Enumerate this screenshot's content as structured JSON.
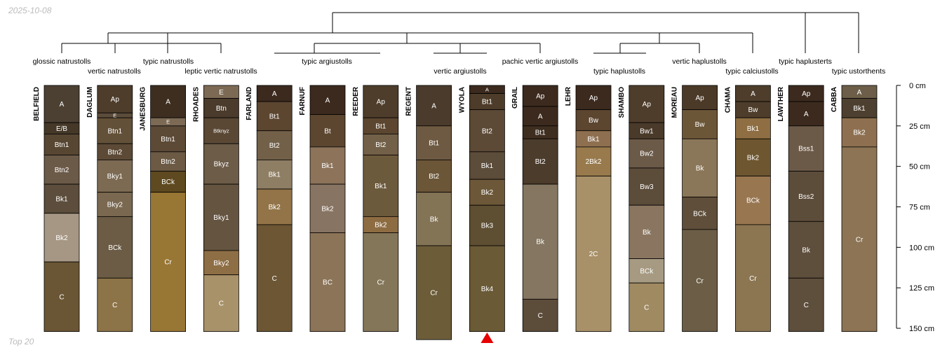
{
  "date_label": "2025-10-08",
  "footer_label": "Top 20",
  "colors": {
    "line": "#000000",
    "label_dark": "#ffffff",
    "label_light": "#ffffff",
    "marker": "#e60000"
  },
  "chart_data": {
    "type": "soil-profile-sketch",
    "depth_unit": "cm",
    "depth_range": [
      0,
      150
    ],
    "depth_ticks": [
      {
        "value": 0,
        "label": "0 cm"
      },
      {
        "value": 25,
        "label": "25 cm"
      },
      {
        "value": 50,
        "label": "50 cm"
      },
      {
        "value": 75,
        "label": "75 cm"
      },
      {
        "value": 100,
        "label": "100 cm"
      },
      {
        "value": 125,
        "label": "125 cm"
      },
      {
        "value": 150,
        "label": "150 cm"
      }
    ],
    "taxonomy_labels": [
      "glossic natrustolls",
      "vertic natrustolls",
      "typic natrustolls",
      "leptic vertic natrustolls",
      "typic argiustolls",
      "vertic argiustolls",
      "pachic vertic argiustolls",
      "typic haplustolls",
      "vertic haplustolls",
      "typic calciustolls",
      "typic haplusterts",
      "typic ustorthents"
    ],
    "profiles": [
      {
        "name": "BELFIELD",
        "taxon": "glossic natrustolls",
        "horizons": [
          {
            "name": "A",
            "top": 0,
            "bottom": 23,
            "color": "#4c4033"
          },
          {
            "name": "E/B",
            "top": 23,
            "bottom": 30,
            "color": "#453828"
          },
          {
            "name": "Btn1",
            "top": 30,
            "bottom": 43,
            "color": "#574632"
          },
          {
            "name": "Btn2",
            "top": 43,
            "bottom": 61,
            "color": "#6c5a48"
          },
          {
            "name": "Bk1",
            "top": 61,
            "bottom": 79,
            "color": "#5c4d3c"
          },
          {
            "name": "Bk2",
            "top": 79,
            "bottom": 109,
            "color": "#a69784"
          },
          {
            "name": "C",
            "top": 109,
            "bottom": 152,
            "color": "#6a5635"
          }
        ]
      },
      {
        "name": "DAGLUM",
        "taxon": "vertic natrustolls",
        "horizons": [
          {
            "name": "Ap",
            "top": 0,
            "bottom": 17,
            "color": "#4e3d2b"
          },
          {
            "name": "E",
            "top": 17,
            "bottom": 20,
            "color": "#5c4c3b"
          },
          {
            "name": "Btn1",
            "top": 20,
            "bottom": 36,
            "color": "#625038"
          },
          {
            "name": "Btn2",
            "top": 36,
            "bottom": 46,
            "color": "#5c4a36"
          },
          {
            "name": "Bky1",
            "top": 46,
            "bottom": 66,
            "color": "#7c6a52"
          },
          {
            "name": "Bky2",
            "top": 66,
            "bottom": 81,
            "color": "#7a6850"
          },
          {
            "name": "BCk",
            "top": 81,
            "bottom": 119,
            "color": "#6c5c45"
          },
          {
            "name": "C",
            "top": 119,
            "bottom": 152,
            "color": "#8c7448"
          }
        ]
      },
      {
        "name": "JANESBURG",
        "taxon": "typic natrustolls",
        "horizons": [
          {
            "name": "A",
            "top": 0,
            "bottom": 20,
            "color": "#3e2e20"
          },
          {
            "name": "E",
            "top": 20,
            "bottom": 25,
            "color": "#7c6a55"
          },
          {
            "name": "Btn1",
            "top": 25,
            "bottom": 41,
            "color": "#5c4a36"
          },
          {
            "name": "Btn2",
            "top": 41,
            "bottom": 53,
            "color": "#6c5a45"
          },
          {
            "name": "BCk",
            "top": 53,
            "bottom": 66,
            "color": "#5e4920"
          },
          {
            "name": "Cr",
            "top": 66,
            "bottom": 152,
            "color": "#987634"
          }
        ]
      },
      {
        "name": "RHOADES",
        "taxon": "leptic vertic natrustolls",
        "horizons": [
          {
            "name": "E",
            "top": 0,
            "bottom": 8,
            "color": "#7c6a55"
          },
          {
            "name": "Btn",
            "top": 8,
            "bottom": 20,
            "color": "#4a3b2c"
          },
          {
            "name": "Btknyz",
            "top": 20,
            "bottom": 36,
            "color": "#5a4835"
          },
          {
            "name": "Bkyz",
            "top": 36,
            "bottom": 61,
            "color": "#6c5c48"
          },
          {
            "name": "Bky1",
            "top": 61,
            "bottom": 102,
            "color": "#645440"
          },
          {
            "name": "Bky2",
            "top": 102,
            "bottom": 117,
            "color": "#8e6e45"
          },
          {
            "name": "C",
            "top": 117,
            "bottom": 152,
            "color": "#a8926a"
          }
        ]
      },
      {
        "name": "FARLAND",
        "taxon": "typic argiustolls",
        "horizons": [
          {
            "name": "A",
            "top": 0,
            "bottom": 10,
            "color": "#3c2a1e"
          },
          {
            "name": "Bt1",
            "top": 10,
            "bottom": 28,
            "color": "#5c4630"
          },
          {
            "name": "Bt2",
            "top": 28,
            "bottom": 46,
            "color": "#726048"
          },
          {
            "name": "Bk1",
            "top": 46,
            "bottom": 64,
            "color": "#8e7e64"
          },
          {
            "name": "Bk2",
            "top": 64,
            "bottom": 86,
            "color": "#927448"
          },
          {
            "name": "C",
            "top": 86,
            "bottom": 152,
            "color": "#6c5634"
          }
        ]
      },
      {
        "name": "FARNUF",
        "taxon": "typic argiustolls",
        "horizons": [
          {
            "name": "A",
            "top": 0,
            "bottom": 18,
            "color": "#3c2a1e"
          },
          {
            "name": "Bt",
            "top": 18,
            "bottom": 38,
            "color": "#5c4630"
          },
          {
            "name": "Bk1",
            "top": 38,
            "bottom": 61,
            "color": "#8c735a"
          },
          {
            "name": "Bk2",
            "top": 61,
            "bottom": 91,
            "color": "#887462"
          },
          {
            "name": "BC",
            "top": 91,
            "bottom": 152,
            "color": "#8c7458"
          }
        ]
      },
      {
        "name": "REEDER",
        "taxon": "typic argiustolls",
        "horizons": [
          {
            "name": "Ap",
            "top": 0,
            "bottom": 20,
            "color": "#4e3d2b"
          },
          {
            "name": "Bt1",
            "top": 20,
            "bottom": 30,
            "color": "#5c4630"
          },
          {
            "name": "Bt2",
            "top": 30,
            "bottom": 43,
            "color": "#726048"
          },
          {
            "name": "Bk1",
            "top": 43,
            "bottom": 81,
            "color": "#6c5a3c"
          },
          {
            "name": "Bk2",
            "top": 81,
            "bottom": 91,
            "color": "#8e6c42"
          },
          {
            "name": "Cr",
            "top": 91,
            "bottom": 152,
            "color": "#847658"
          }
        ]
      },
      {
        "name": "REGENT",
        "taxon": "vertic argiustolls",
        "horizons": [
          {
            "name": "A",
            "top": 0,
            "bottom": 25,
            "color": "#4a3b2c"
          },
          {
            "name": "Bt1",
            "top": 25,
            "bottom": 46,
            "color": "#6e5a42"
          },
          {
            "name": "Bt2",
            "top": 46,
            "bottom": 66,
            "color": "#6c5638"
          },
          {
            "name": "Bk",
            "top": 66,
            "bottom": 99,
            "color": "#847456"
          },
          {
            "name": "Cr",
            "top": 99,
            "bottom": 157,
            "color": "#6c5c38"
          }
        ]
      },
      {
        "name": "WYOLA",
        "taxon": "vertic argiustolls",
        "horizons": [
          {
            "name": "A",
            "top": 0,
            "bottom": 5,
            "color": "#3c2a1e"
          },
          {
            "name": "Bt1",
            "top": 5,
            "bottom": 15,
            "color": "#4e3c2a"
          },
          {
            "name": "Bt2",
            "top": 15,
            "bottom": 41,
            "color": "#5c4a36"
          },
          {
            "name": "Bk1",
            "top": 41,
            "bottom": 58,
            "color": "#5c4c3a"
          },
          {
            "name": "Bk2",
            "top": 58,
            "bottom": 74,
            "color": "#6c5838"
          },
          {
            "name": "Bk3",
            "top": 74,
            "bottom": 99,
            "color": "#5e4e32"
          },
          {
            "name": "Bk4",
            "top": 99,
            "bottom": 152,
            "color": "#6a5a36"
          }
        ]
      },
      {
        "name": "GRAIL",
        "taxon": "pachic vertic argiustolls",
        "horizons": [
          {
            "name": "Ap",
            "top": 0,
            "bottom": 13,
            "color": "#3c2a1e"
          },
          {
            "name": "A",
            "top": 13,
            "bottom": 25,
            "color": "#3c2a1e"
          },
          {
            "name": "Bt1",
            "top": 25,
            "bottom": 33,
            "color": "#3e2e20"
          },
          {
            "name": "Bt2",
            "top": 33,
            "bottom": 61,
            "color": "#4c3c2c"
          },
          {
            "name": "Bk",
            "top": 61,
            "bottom": 132,
            "color": "#847660"
          },
          {
            "name": "C",
            "top": 132,
            "bottom": 152,
            "color": "#5c4c3a"
          }
        ]
      },
      {
        "name": "LEHR",
        "taxon": "typic haplustolls",
        "horizons": [
          {
            "name": "Ap",
            "top": 0,
            "bottom": 15,
            "color": "#3c2a1e"
          },
          {
            "name": "Bw",
            "top": 15,
            "bottom": 28,
            "color": "#5c4630"
          },
          {
            "name": "Bk1",
            "top": 28,
            "bottom": 38,
            "color": "#8e7050"
          },
          {
            "name": "2Bk2",
            "top": 38,
            "bottom": 56,
            "color": "#987a4c"
          },
          {
            "name": "2C",
            "top": 56,
            "bottom": 152,
            "color": "#a89068"
          }
        ]
      },
      {
        "name": "SHAMBO",
        "taxon": "typic haplustolls",
        "horizons": [
          {
            "name": "Ap",
            "top": 0,
            "bottom": 23,
            "color": "#4e3d2b"
          },
          {
            "name": "Bw1",
            "top": 23,
            "bottom": 33,
            "color": "#4a3a2a"
          },
          {
            "name": "Bw2",
            "top": 33,
            "bottom": 51,
            "color": "#6c5a48"
          },
          {
            "name": "Bw3",
            "top": 51,
            "bottom": 74,
            "color": "#5c4c3a"
          },
          {
            "name": "Bk",
            "top": 74,
            "bottom": 107,
            "color": "#8a7660"
          },
          {
            "name": "BCk",
            "top": 107,
            "bottom": 122,
            "color": "#a69a82"
          },
          {
            "name": "C",
            "top": 122,
            "bottom": 152,
            "color": "#a08a62"
          }
        ]
      },
      {
        "name": "MOREAU",
        "taxon": "vertic haplustolls",
        "horizons": [
          {
            "name": "Ap",
            "top": 0,
            "bottom": 15,
            "color": "#4c3a28"
          },
          {
            "name": "Bw",
            "top": 15,
            "bottom": 33,
            "color": "#6c5638"
          },
          {
            "name": "Bk",
            "top": 33,
            "bottom": 69,
            "color": "#8a7658"
          },
          {
            "name": "BCk",
            "top": 69,
            "bottom": 89,
            "color": "#5e4e3a"
          },
          {
            "name": "Cr",
            "top": 89,
            "bottom": 152,
            "color": "#6c5e46"
          }
        ]
      },
      {
        "name": "CHAMA",
        "taxon": "typic calciustolls",
        "horizons": [
          {
            "name": "A",
            "top": 0,
            "bottom": 10,
            "color": "#4e3d2b"
          },
          {
            "name": "Bw",
            "top": 10,
            "bottom": 20,
            "color": "#4e3d2b"
          },
          {
            "name": "Bk1",
            "top": 20,
            "bottom": 33,
            "color": "#8e6e42"
          },
          {
            "name": "Bk2",
            "top": 33,
            "bottom": 56,
            "color": "#6e5630"
          },
          {
            "name": "BCk",
            "top": 56,
            "bottom": 86,
            "color": "#987650"
          },
          {
            "name": "Cr",
            "top": 86,
            "bottom": 152,
            "color": "#8c7652"
          }
        ]
      },
      {
        "name": "LAWTHER",
        "taxon": "typic haplusterts",
        "horizons": [
          {
            "name": "Ap",
            "top": 0,
            "bottom": 10,
            "color": "#3c2a1e"
          },
          {
            "name": "A",
            "top": 10,
            "bottom": 25,
            "color": "#3c2a1e"
          },
          {
            "name": "Bss1",
            "top": 25,
            "bottom": 53,
            "color": "#6c5a48"
          },
          {
            "name": "Bss2",
            "top": 53,
            "bottom": 84,
            "color": "#5c4c3a"
          },
          {
            "name": "Bk",
            "top": 84,
            "bottom": 119,
            "color": "#5e4e3c"
          },
          {
            "name": "C",
            "top": 119,
            "bottom": 152,
            "color": "#5e4e3c"
          }
        ]
      },
      {
        "name": "CABBA",
        "taxon": "typic ustorthents",
        "horizons": [
          {
            "name": "A",
            "top": 0,
            "bottom": 8,
            "color": "#6c5e48"
          },
          {
            "name": "Bk1",
            "top": 8,
            "bottom": 20,
            "color": "#4e4030"
          },
          {
            "name": "Bk2",
            "top": 20,
            "bottom": 38,
            "color": "#8e7050"
          },
          {
            "name": "Cr",
            "top": 38,
            "bottom": 152,
            "color": "#8c7455"
          }
        ]
      }
    ],
    "highlighted_profile": "WYOLA"
  }
}
